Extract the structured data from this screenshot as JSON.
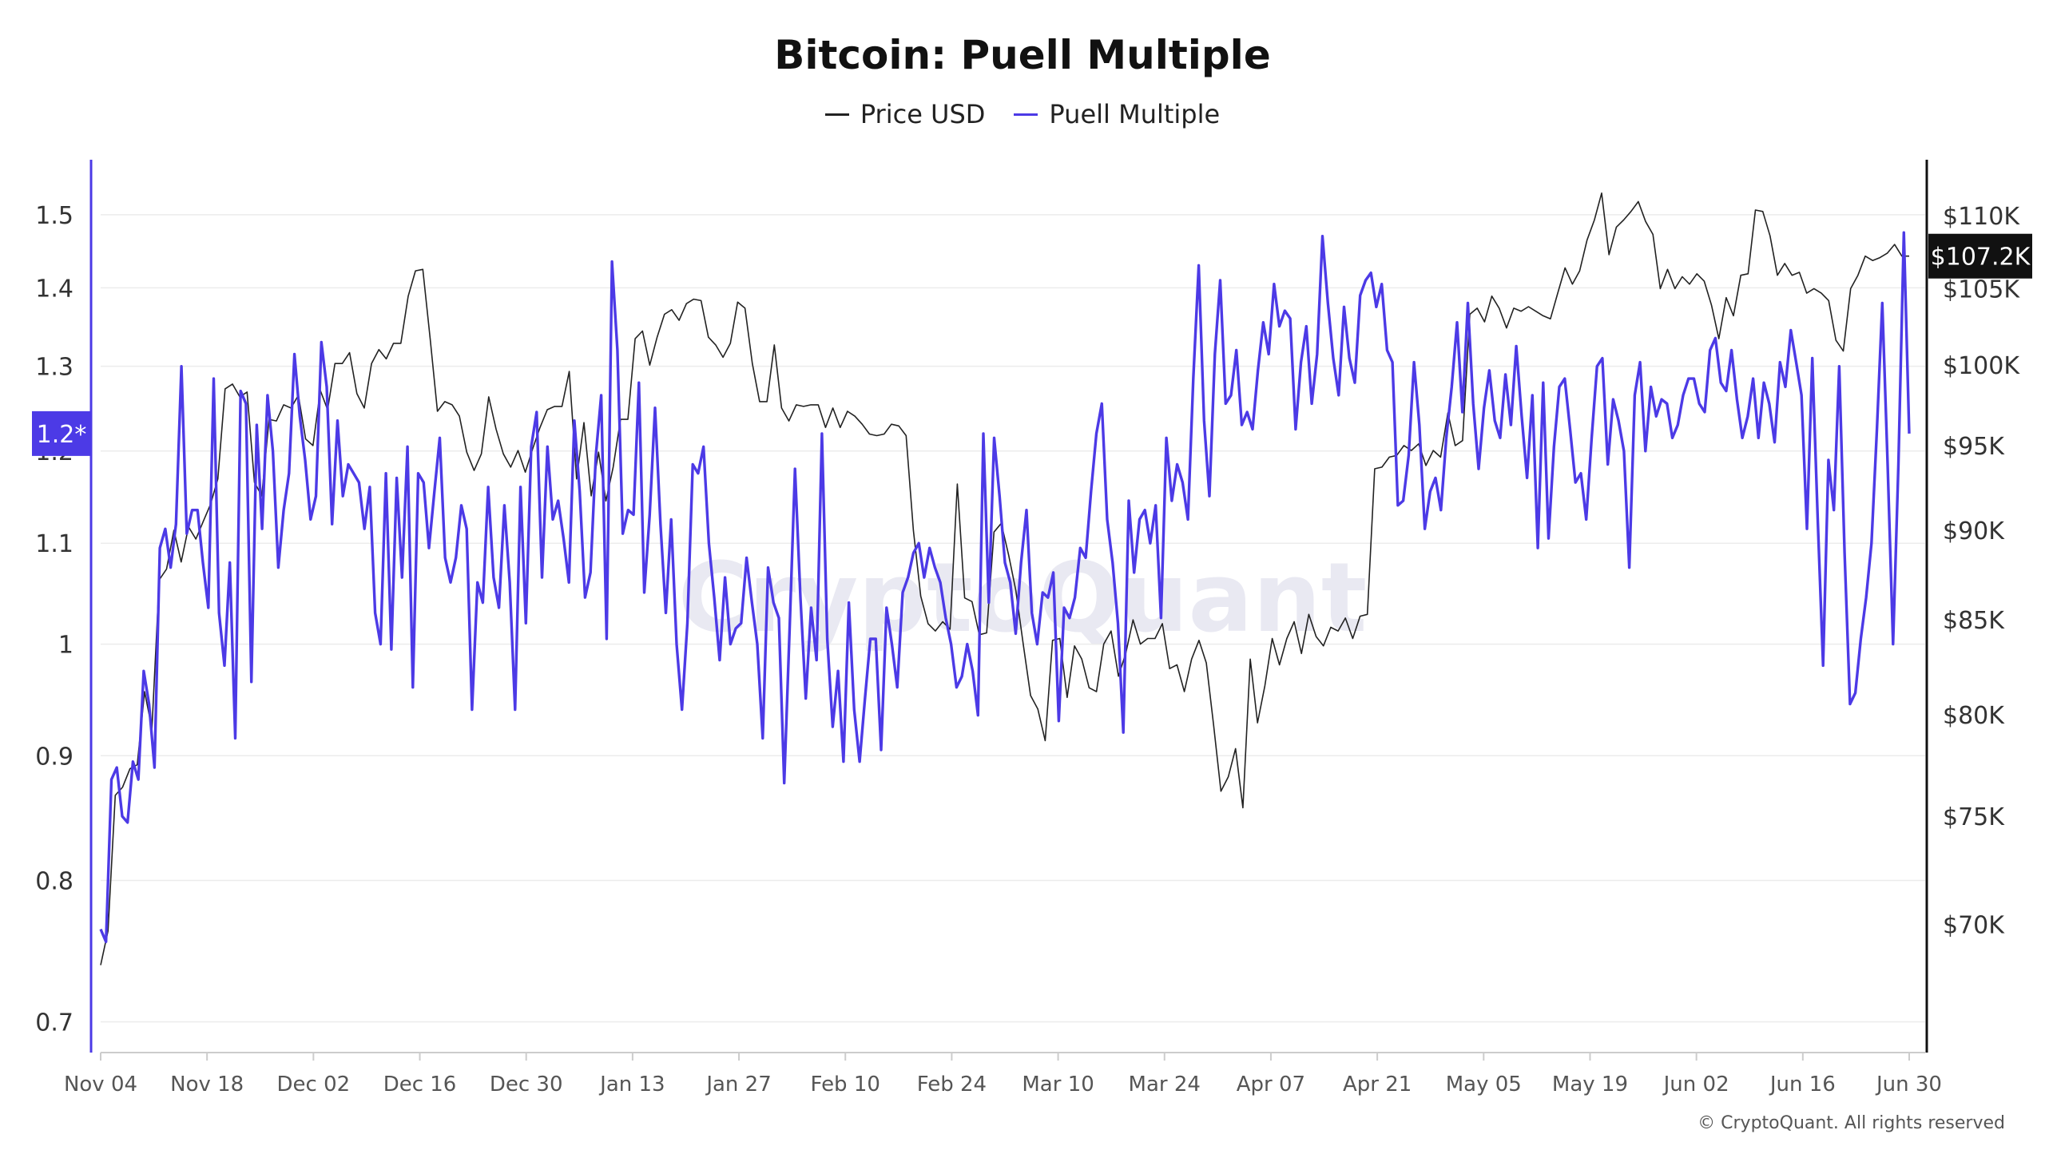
{
  "title": "Bitcoin: Puell Multiple",
  "legend": {
    "price_label": "Price USD",
    "puell_label": "Puell Multiple"
  },
  "colors": {
    "price": "#222222",
    "puell": "#4c3ae6",
    "grid": "#ececec",
    "axis": "#cccccc",
    "badge_left_bg": "#4c3ae6",
    "badge_right_bg": "#111111",
    "watermark": "#e9e9f2"
  },
  "watermark": "CryptoQuant",
  "copyright": "© CryptoQuant. All rights reserved",
  "chart_data": {
    "type": "line",
    "xlabels": [
      "Nov 04",
      "Nov 18",
      "Dec 02",
      "Dec 16",
      "Dec 30",
      "Jan 13",
      "Jan 27",
      "Feb 10",
      "Feb 24",
      "Mar 10",
      "Mar 24",
      "Apr 07",
      "Apr 21",
      "May 05",
      "May 19",
      "Jun 02",
      "Jun 16",
      "Jun 30"
    ],
    "left_axis": {
      "ticks": [
        "0.7",
        "0.8",
        "0.9",
        "1",
        "1.1",
        "1.2",
        "1.3",
        "1.4",
        "1.5"
      ],
      "scale": "log",
      "range": [
        0.68,
        1.58
      ],
      "current_badge": "1.2*",
      "current_value": 1.22
    },
    "right_axis": {
      "ticks": [
        "$70K",
        "$75K",
        "$80K",
        "$85K",
        "$90K",
        "$95K",
        "$100K",
        "$105K",
        "$110K"
      ],
      "scale": "log",
      "range": [
        64500,
        114000
      ],
      "current_badge": "$107.2K",
      "current_value": 107200
    },
    "series": [
      {
        "name": "Price USD",
        "axis": "right",
        "values": [
          68200,
          69700,
          76000,
          76400,
          77300,
          77500,
          81200,
          79300,
          87200,
          87800,
          90000,
          88200,
          90200,
          89500,
          90500,
          91500,
          93000,
          98500,
          98800,
          98000,
          98300,
          92800,
          92000,
          96600,
          96500,
          97500,
          97300,
          98100,
          95400,
          95000,
          98400,
          97200,
          100100,
          100100,
          100800,
          98200,
          97300,
          100100,
          101000,
          100400,
          101400,
          101400,
          104500,
          106200,
          106300,
          101700,
          97100,
          97700,
          97500,
          96800,
          94600,
          93500,
          94500,
          98000,
          96000,
          94500,
          93700,
          94700,
          93400,
          94800,
          96100,
          97200,
          97400,
          97400,
          99600,
          93000,
          96400,
          92000,
          94600,
          91700,
          93700,
          96600,
          96600,
          101700,
          102200,
          100000,
          101800,
          103300,
          103600,
          102900,
          104000,
          104300,
          104200,
          101800,
          101300,
          100500,
          101400,
          104100,
          103700,
          100100,
          97700,
          97700,
          101300,
          97300,
          96500,
          97500,
          97400,
          97500,
          97500,
          96100,
          97300,
          96100,
          97100,
          96800,
          96300,
          95700,
          95600,
          95700,
          96300,
          96200,
          95600,
          90000,
          86300,
          84800,
          84400,
          84900,
          84500,
          92700,
          86200,
          86000,
          84200,
          84300,
          89900,
          90400,
          88600,
          86600,
          83700,
          81000,
          80300,
          78700,
          83900,
          84000,
          80900,
          83600,
          82900,
          81400,
          81200,
          83700,
          84400,
          82000,
          83200,
          85000,
          83700,
          84000,
          84000,
          84800,
          82400,
          82600,
          81200,
          82900,
          83900,
          82700,
          79500,
          76200,
          76900,
          78300,
          75400,
          82900,
          79600,
          81500,
          84000,
          82600,
          84000,
          84900,
          83200,
          85300,
          84100,
          83600,
          84600,
          84400,
          85100,
          84000,
          85200,
          85300,
          93600,
          93700,
          94300,
          94400,
          95000,
          94700,
          95100,
          93800,
          94700,
          94300,
          97000,
          95000,
          95300,
          103300,
          103700,
          102800,
          104500,
          103700,
          102400,
          103700,
          103500,
          103800,
          103500,
          103200,
          103000,
          104700,
          106400,
          105300,
          106200,
          108300,
          109700,
          111600,
          107300,
          109200,
          109700,
          110300,
          111000,
          109600,
          108700,
          105000,
          106300,
          105000,
          105800,
          105300,
          106000,
          105500,
          103900,
          101700,
          104400,
          103200,
          105900,
          106000,
          110400,
          110300,
          108600,
          105900,
          106700,
          105900,
          106100,
          104700,
          105000,
          104700,
          104200,
          101600,
          100900,
          105000,
          105900,
          107200,
          106900,
          107100,
          107400,
          108000,
          107200,
          107200
        ]
      },
      {
        "name": "Puell Multiple",
        "axis": "left",
        "values": [
          0.764,
          0.755,
          0.88,
          0.89,
          0.85,
          0.845,
          0.895,
          0.88,
          0.975,
          0.945,
          0.89,
          1.095,
          1.115,
          1.075,
          1.12,
          1.3,
          1.11,
          1.135,
          1.135,
          1.08,
          1.035,
          1.285,
          1.03,
          0.98,
          1.08,
          0.915,
          1.27,
          1.255,
          0.965,
          1.23,
          1.115,
          1.265,
          1.2,
          1.075,
          1.135,
          1.175,
          1.315,
          1.24,
          1.19,
          1.125,
          1.15,
          1.33,
          1.275,
          1.12,
          1.235,
          1.15,
          1.185,
          1.175,
          1.165,
          1.115,
          1.16,
          1.03,
          1.0,
          1.175,
          0.995,
          1.17,
          1.065,
          1.205,
          0.96,
          1.175,
          1.165,
          1.095,
          1.155,
          1.215,
          1.085,
          1.06,
          1.085,
          1.14,
          1.115,
          0.94,
          1.06,
          1.04,
          1.16,
          1.065,
          1.035,
          1.14,
          1.06,
          0.94,
          1.16,
          1.02,
          1.205,
          1.245,
          1.065,
          1.205,
          1.125,
          1.145,
          1.105,
          1.06,
          1.235,
          1.155,
          1.045,
          1.07,
          1.195,
          1.265,
          1.005,
          1.435,
          1.32,
          1.11,
          1.135,
          1.13,
          1.28,
          1.05,
          1.13,
          1.25,
          1.12,
          1.03,
          1.125,
          1.0,
          0.94,
          1.02,
          1.185,
          1.175,
          1.205,
          1.1,
          1.045,
          0.985,
          1.065,
          1.0,
          1.015,
          1.02,
          1.085,
          1.04,
          1.0,
          0.915,
          1.075,
          1.04,
          1.025,
          0.877,
          1.015,
          1.18,
          1.045,
          0.95,
          1.035,
          0.985,
          1.22,
          1.005,
          0.925,
          0.975,
          0.895,
          1.04,
          0.94,
          0.895,
          0.95,
          1.005,
          1.005,
          0.905,
          1.035,
          1.0,
          0.96,
          1.05,
          1.065,
          1.09,
          1.1,
          1.065,
          1.095,
          1.075,
          1.06,
          1.025,
          1.0,
          0.96,
          0.97,
          1.0,
          0.975,
          0.935,
          1.22,
          1.04,
          1.215,
          1.15,
          1.08,
          1.06,
          1.01,
          1.08,
          1.135,
          1.03,
          1.0,
          1.05,
          1.045,
          1.07,
          0.93,
          1.035,
          1.025,
          1.045,
          1.095,
          1.085,
          1.155,
          1.22,
          1.255,
          1.125,
          1.08,
          1.02,
          0.92,
          1.145,
          1.07,
          1.125,
          1.135,
          1.1,
          1.14,
          1.025,
          1.215,
          1.145,
          1.185,
          1.165,
          1.125,
          1.285,
          1.43,
          1.235,
          1.15,
          1.315,
          1.41,
          1.255,
          1.265,
          1.32,
          1.23,
          1.245,
          1.225,
          1.295,
          1.355,
          1.315,
          1.405,
          1.35,
          1.37,
          1.36,
          1.225,
          1.305,
          1.35,
          1.255,
          1.315,
          1.47,
          1.38,
          1.31,
          1.265,
          1.375,
          1.31,
          1.28,
          1.39,
          1.41,
          1.42,
          1.375,
          1.405,
          1.32,
          1.305,
          1.14,
          1.145,
          1.195,
          1.305,
          1.23,
          1.115,
          1.155,
          1.17,
          1.135,
          1.215,
          1.275,
          1.355,
          1.245,
          1.38,
          1.255,
          1.18,
          1.25,
          1.295,
          1.235,
          1.215,
          1.29,
          1.23,
          1.325,
          1.24,
          1.17,
          1.265,
          1.095,
          1.28,
          1.105,
          1.205,
          1.275,
          1.285,
          1.225,
          1.165,
          1.175,
          1.125,
          1.215,
          1.3,
          1.31,
          1.185,
          1.26,
          1.235,
          1.2,
          1.075,
          1.265,
          1.305,
          1.2,
          1.275,
          1.24,
          1.26,
          1.255,
          1.215,
          1.23,
          1.265,
          1.285,
          1.285,
          1.255,
          1.245,
          1.32,
          1.335,
          1.28,
          1.27,
          1.32,
          1.26,
          1.215,
          1.24,
          1.285,
          1.215,
          1.28,
          1.255,
          1.21,
          1.305,
          1.275,
          1.345,
          1.305,
          1.265,
          1.115,
          1.31,
          1.125,
          0.98,
          1.19,
          1.135,
          1.3,
          1.09,
          0.945,
          0.955,
          1.005,
          1.045,
          1.1,
          1.225,
          1.38,
          1.185,
          1.0,
          1.185,
          1.475,
          1.22
        ]
      }
    ]
  }
}
